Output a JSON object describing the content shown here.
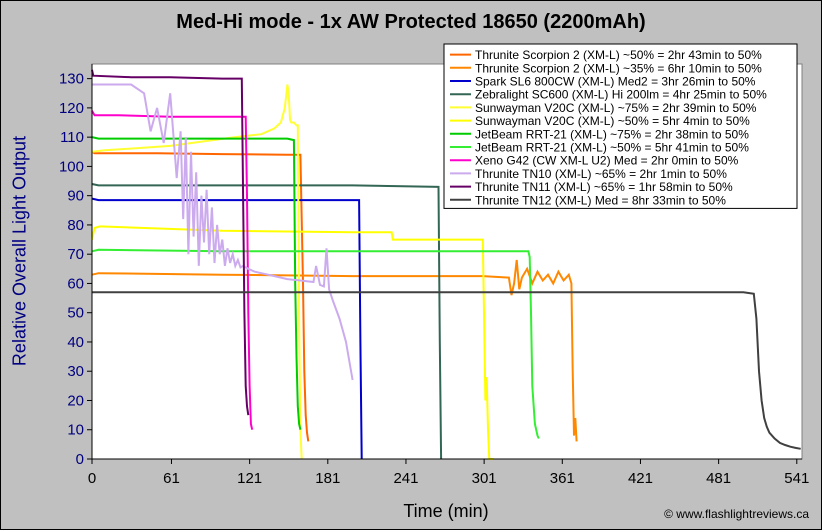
{
  "title": "Med-Hi mode - 1x AW Protected 18650 (2200mAh)",
  "credit": "© www.flashlightreviews.ca",
  "chart_data": {
    "type": "line",
    "title": "Med-Hi mode - 1x AW Protected 18650 (2200mAh)",
    "xlabel": "Time (min)",
    "ylabel": "Relative Overall Light Output",
    "xlim": [
      0,
      545
    ],
    "ylim": [
      0,
      135
    ],
    "xticks": [
      0,
      61,
      121,
      181,
      241,
      301,
      361,
      421,
      481,
      541
    ],
    "yticks": [
      0,
      10,
      20,
      30,
      40,
      50,
      60,
      70,
      80,
      90,
      100,
      110,
      120,
      130
    ],
    "grid": false,
    "legend_position": "top-right",
    "series": [
      {
        "name": "Thrunite Scorpion 2 (XM-L) ~50% = 2hr 43min to 50%",
        "color": "#ff6600",
        "x": [
          0,
          2,
          50,
          100,
          150,
          160,
          162,
          163,
          164,
          165,
          166
        ],
        "y": [
          105,
          104.5,
          104.5,
          104.2,
          104,
          104,
          60,
          30,
          15,
          9,
          6
        ]
      },
      {
        "name": "Thrunite Scorpion 2 (XM-L) ~35% = 6hr 10min to 50%",
        "color": "#ff8800",
        "x": [
          0,
          5,
          100,
          200,
          300,
          320,
          322,
          324,
          326,
          328,
          330,
          334,
          338,
          342,
          346,
          350,
          354,
          358,
          362,
          366,
          368,
          369,
          370,
          371,
          372
        ],
        "y": [
          63,
          63.5,
          63,
          62.5,
          62.5,
          62,
          56,
          60,
          68,
          58,
          62,
          65,
          60,
          64,
          61,
          63,
          60,
          64,
          61,
          63,
          60,
          30,
          8,
          14,
          6
        ]
      },
      {
        "name": "Spark SL6 800CW (XM-L) Med2 = 3hr 26min to 50%",
        "color": "#0000cc",
        "x": [
          0,
          5,
          100,
          205,
          206,
          207
        ],
        "y": [
          89,
          88.5,
          88.5,
          88.5,
          40,
          0
        ]
      },
      {
        "name": "Zebralight SC600 (XM-L) Hi 200lm = 4hr 25min to 50%",
        "color": "#336655",
        "x": [
          0,
          5,
          100,
          200,
          266,
          267,
          268
        ],
        "y": [
          94,
          93.5,
          93.5,
          93.5,
          93,
          40,
          0
        ]
      },
      {
        "name": "Sunwayman V20C (XM-L) ~75% = 2hr 39min to 50%",
        "color": "#ffff33",
        "x": [
          0,
          10,
          60,
          110,
          130,
          140,
          145,
          148,
          150,
          151,
          152,
          153,
          155,
          157,
          158,
          159,
          160,
          161
        ],
        "y": [
          105,
          105.5,
          107,
          110,
          111,
          113,
          115,
          120,
          128,
          125,
          116,
          115,
          115,
          114,
          114,
          50,
          10,
          0
        ]
      },
      {
        "name": "Sunwayman V20C (XM-L) ~50% = 5hr 4min to 50%",
        "color": "#ffff00",
        "x": [
          0,
          2,
          6,
          100,
          200,
          230,
          231,
          290,
          300,
          302,
          303,
          304,
          305,
          306,
          308
        ],
        "y": [
          75,
          79,
          79.5,
          78,
          77.5,
          77.5,
          75,
          75,
          75,
          20,
          28,
          10,
          0,
          0,
          0
        ]
      },
      {
        "name": "JetBeam RRT-21 (XM-L) ~75% = 2hr 38min to 50%",
        "color": "#00cc00",
        "x": [
          0,
          5,
          100,
          150,
          155,
          156,
          157,
          158,
          159,
          160
        ],
        "y": [
          110,
          109.5,
          109.5,
          109.5,
          109,
          60,
          35,
          18,
          12,
          10
        ]
      },
      {
        "name": "JetBeam RRT-21 (XM-L) ~50% = 5hr 41min to 50%",
        "color": "#33ee33",
        "x": [
          0,
          5,
          100,
          200,
          300,
          335,
          336,
          337,
          338,
          340,
          342,
          343
        ],
        "y": [
          71,
          71.5,
          71,
          71,
          71,
          71,
          69,
          50,
          25,
          12,
          8,
          7
        ]
      },
      {
        "name": "Xeno G42 (CW XM-L U2) Med = 2hr 0min to 50%",
        "color": "#ff00cc",
        "x": [
          0,
          2,
          20,
          60,
          100,
          118,
          119,
          120,
          121,
          122,
          123
        ],
        "y": [
          119,
          117.5,
          117.5,
          117,
          117,
          117,
          90,
          50,
          25,
          12,
          10
        ]
      },
      {
        "name": "Thrunite TN10 (XM-L) ~65% = 2hr 1min to 50%",
        "color": "#ccaaee",
        "x": [
          0,
          30,
          40,
          45,
          50,
          55,
          60,
          65,
          68,
          70,
          72,
          74,
          76,
          78,
          80,
          82,
          84,
          86,
          88,
          90,
          92,
          94,
          96,
          98,
          100,
          102,
          104,
          106,
          108,
          110,
          112,
          114,
          116,
          118,
          120,
          125,
          130,
          140,
          150,
          160,
          170,
          172,
          175,
          178,
          180,
          182,
          185,
          190,
          195,
          200
        ],
        "y": [
          128,
          128,
          125,
          112,
          120,
          108,
          125,
          96,
          112,
          82,
          110,
          70,
          105,
          76,
          98,
          66,
          90,
          74,
          92,
          70,
          86,
          67,
          80,
          70,
          75,
          66,
          72,
          67,
          70,
          66,
          68,
          65.5,
          66,
          65.5,
          65,
          64,
          63.5,
          62.5,
          61.5,
          61,
          60.5,
          66,
          59.5,
          59,
          72,
          58,
          54,
          48,
          40,
          27
        ]
      },
      {
        "name": "Thrunite TN11 (XM-L) ~65% = 1hr 58min to 50%",
        "color": "#660066",
        "x": [
          0,
          1,
          30,
          60,
          100,
          115,
          116,
          117,
          118,
          119,
          120
        ],
        "y": [
          133,
          131,
          130.5,
          130.5,
          130,
          130,
          90,
          50,
          25,
          18,
          15
        ]
      },
      {
        "name": "Thrunite TN12 (XM-L) Med = 8hr 33min to 50%",
        "color": "#404040",
        "x": [
          0,
          100,
          200,
          300,
          400,
          500,
          508,
          510,
          512,
          514,
          516,
          518,
          520,
          524,
          528,
          532,
          536,
          540,
          544
        ],
        "y": [
          57,
          57,
          57,
          57,
          57,
          57,
          56.5,
          48,
          30,
          20,
          14,
          11,
          9,
          7,
          5.5,
          4.8,
          4.2,
          3.8,
          3.5
        ]
      }
    ]
  }
}
